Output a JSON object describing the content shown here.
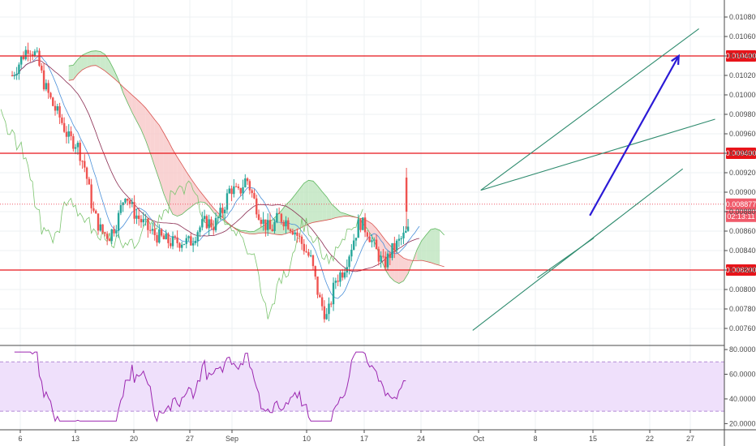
{
  "chart_data": {
    "type": "candlestick",
    "colors": {
      "up": "#26a69a",
      "down": "#ef5350",
      "cloud_bull": "#b9e3b9",
      "cloud_bear": "#f7c4c4",
      "lagging_span": "#7cc46f",
      "conversion_line": "#4a90d9",
      "base_line": "#8b2d52",
      "horizontal_level": "#e8141a",
      "current_price": "#f05a6a",
      "trend_line": "#2e8b6e",
      "projection_arrow": "#2b1ad6",
      "rsi_line": "#9c27b0",
      "rsi_band": "#efe0fb"
    },
    "price_axis": {
      "ticks": [
        "0.010800",
        "0.010600",
        "0.010400",
        "0.010200",
        "0.010000",
        "0.009800",
        "0.009600",
        "0.009400",
        "0.009200",
        "0.009000",
        "0.008800",
        "0.008600",
        "0.008400",
        "0.008200",
        "0.008000",
        "0.007800",
        "0.007600"
      ],
      "range": [
        0.0074,
        0.0109
      ]
    },
    "x_axis": {
      "ticks": [
        "6",
        "13",
        "20",
        "27",
        "Sep",
        "10",
        "17",
        "24",
        "Oct",
        "8",
        "15",
        "22",
        "27"
      ]
    },
    "horizontal_levels": [
      {
        "label": "0.010400",
        "value": 0.0104
      },
      {
        "label": "0.009400",
        "value": 0.0094
      },
      {
        "label": "0.008200",
        "value": 0.0082
      }
    ],
    "current_price": {
      "label": "0.008877",
      "value": 0.008877,
      "countdown": "02:13:11"
    },
    "trend_lines": [
      {
        "name": "channel-upper",
        "from": {
          "day": 57,
          "price": 0.00902
        },
        "to": {
          "day": 84,
          "price": 0.01068
        }
      },
      {
        "name": "channel-lower",
        "from": {
          "day": 56,
          "price": 0.00758
        },
        "to": {
          "day": 82,
          "price": 0.00924
        }
      },
      {
        "name": "wedge-upper",
        "from": {
          "day": 57,
          "price": 0.00902
        },
        "to": {
          "day": 86,
          "price": 0.00975
        }
      },
      {
        "name": "wedge-lower",
        "from": {
          "day": 64,
          "price": 0.00812
        },
        "to": {
          "day": 71,
          "price": 0.00853
        }
      }
    ],
    "projection_arrow": {
      "from": {
        "day": 70.5,
        "price": 0.00876
      },
      "to": {
        "day": 81.5,
        "price": 0.0104
      }
    },
    "candles_note": "",
    "rsi": {
      "ticks": [
        "80.0000",
        "60.0000",
        "40.0000",
        "20.0000"
      ],
      "range": [
        15,
        82
      ],
      "upper_band": 70,
      "lower_band": 30
    }
  }
}
